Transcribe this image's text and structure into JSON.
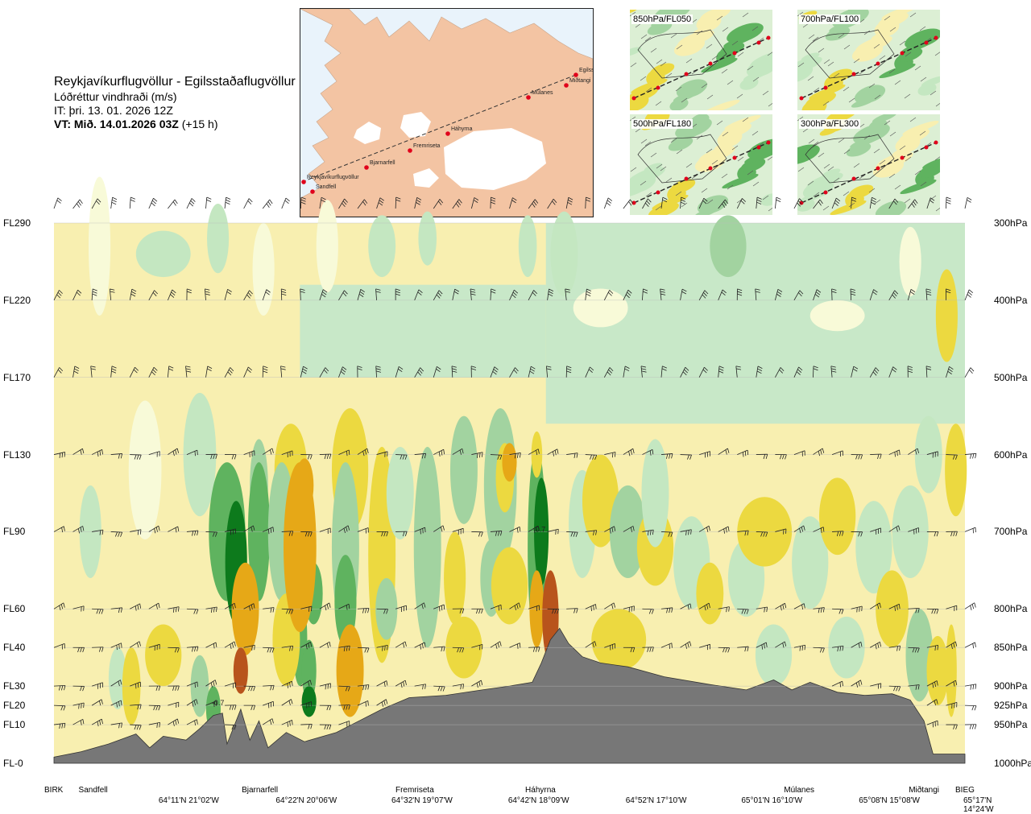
{
  "header": {
    "route": "Reykjavíkurflugvöllur - Egilsstaðaflugvöllur",
    "variable": "Lóðréttur vindhraði (m/s)",
    "issue_time": "IT: þri. 13. 01. 2026 12Z",
    "valid_time": "VT: Mið. 14.01.2026 03Z",
    "lead_time": "(+15 h)"
  },
  "map": {
    "stations": [
      "Reykjavíkurflugvöllur",
      "Sandfell",
      "Bjarnarfell",
      "Fremriseta",
      "Háhyrna",
      "Múlanes",
      "Egilsstaðir",
      "Miðtangi"
    ],
    "colors": {
      "sea": "#e9f3fb",
      "land": "#f3c4a3",
      "ice": "#ffffff",
      "route": "#333333",
      "marker": "#e0001b"
    }
  },
  "panels": [
    {
      "label": "850hPa/FL050"
    },
    {
      "label": "700hPa/FL100"
    },
    {
      "label": "500hPa/FL180"
    },
    {
      "label": "300hPa/FL300"
    }
  ],
  "chart_data": {
    "type": "heatmap",
    "title": "Lóðréttur vindhraði (m/s)",
    "left_axis_labels": [
      {
        "level": "FL290",
        "hpa": 300
      },
      {
        "level": "FL220",
        "hpa": 400
      },
      {
        "level": "FL170",
        "hpa": 500
      },
      {
        "level": "FL130",
        "hpa": 600
      },
      {
        "level": "FL90",
        "hpa": 700
      },
      {
        "level": "FL60",
        "hpa": 800
      },
      {
        "level": "FL40",
        "hpa": 850
      },
      {
        "level": "FL30",
        "hpa": 900
      },
      {
        "level": "FL20",
        "hpa": 925
      },
      {
        "level": "FL10",
        "hpa": 950
      },
      {
        "level": "FL-0",
        "hpa": 1000
      }
    ],
    "right_axis_labels": [
      "300hPa",
      "400hPa",
      "500hPa",
      "600hPa",
      "700hPa",
      "800hPa",
      "850hPa",
      "900hPa",
      "925hPa",
      "950hPa",
      "1000hPa"
    ],
    "pressure_range_hpa": [
      300,
      1000
    ],
    "route_fraction_range": [
      0,
      1
    ],
    "locations": [
      {
        "name": "BIRK",
        "pos": 0.0
      },
      {
        "name": "Sandfell",
        "pos": 0.043
      },
      {
        "name": "Bjarnarfell",
        "pos": 0.226
      },
      {
        "name": "Fremriseta",
        "pos": 0.396
      },
      {
        "name": "Háhyrna",
        "pos": 0.534
      },
      {
        "name": "Múlanes",
        "pos": 0.818
      },
      {
        "name": "Miðtangi",
        "pos": 0.955
      },
      {
        "name": "BIEG",
        "pos": 1.0
      }
    ],
    "coordinates": [
      {
        "text": "64°11'N 21°02'W",
        "pos": 0.148
      },
      {
        "text": "64°22'N 20°06'W",
        "pos": 0.277
      },
      {
        "text": "64°32'N 19°07'W",
        "pos": 0.404
      },
      {
        "text": "64°42'N 18°09'W",
        "pos": 0.532
      },
      {
        "text": "64°52'N 17°10'W",
        "pos": 0.661
      },
      {
        "text": "65°01'N 16°10'W",
        "pos": 0.788
      },
      {
        "text": "65°08'N 15°08'W",
        "pos": 0.917
      },
      {
        "text": "65°17'N 14°24'W",
        "pos": 1.0
      }
    ],
    "annotations": [
      {
        "text": "-0.7",
        "pos": 0.18,
        "hpa": 925
      },
      {
        "text": "0.7",
        "pos": 0.534,
        "hpa": 700
      }
    ],
    "color_scale": [
      {
        "range": [
          -1.0,
          -0.5
        ],
        "color": "#0d7a1c"
      },
      {
        "range": [
          -0.5,
          -0.2
        ],
        "color": "#5fb35f"
      },
      {
        "range": [
          -0.2,
          -0.1
        ],
        "color": "#a2d3a0"
      },
      {
        "range": [
          -0.1,
          -0.05
        ],
        "color": "#c4e7c1"
      },
      {
        "range": [
          -0.05,
          0.05
        ],
        "color": "#f8fad8"
      },
      {
        "range": [
          0.05,
          0.1
        ],
        "color": "#f8efb0"
      },
      {
        "range": [
          0.1,
          0.2
        ],
        "color": "#ecd940"
      },
      {
        "range": [
          0.2,
          0.5
        ],
        "color": "#e6a817"
      },
      {
        "range": [
          0.5,
          1.0
        ],
        "color": "#b8541c"
      }
    ],
    "background_color": "#f8efb0",
    "upper_background_color": "#c8e8c8",
    "terrain_color": "#777777",
    "terrain_profile": [
      {
        "x": 0.0,
        "hpa": 992
      },
      {
        "x": 0.03,
        "hpa": 985
      },
      {
        "x": 0.06,
        "hpa": 975
      },
      {
        "x": 0.09,
        "hpa": 962
      },
      {
        "x": 0.105,
        "hpa": 980
      },
      {
        "x": 0.12,
        "hpa": 965
      },
      {
        "x": 0.145,
        "hpa": 970
      },
      {
        "x": 0.16,
        "hpa": 955
      },
      {
        "x": 0.175,
        "hpa": 938
      },
      {
        "x": 0.185,
        "hpa": 935
      },
      {
        "x": 0.19,
        "hpa": 975
      },
      {
        "x": 0.205,
        "hpa": 930
      },
      {
        "x": 0.215,
        "hpa": 970
      },
      {
        "x": 0.225,
        "hpa": 945
      },
      {
        "x": 0.235,
        "hpa": 980
      },
      {
        "x": 0.255,
        "hpa": 960
      },
      {
        "x": 0.275,
        "hpa": 972
      },
      {
        "x": 0.31,
        "hpa": 960
      },
      {
        "x": 0.335,
        "hpa": 945
      },
      {
        "x": 0.36,
        "hpa": 930
      },
      {
        "x": 0.39,
        "hpa": 915
      },
      {
        "x": 0.43,
        "hpa": 912
      },
      {
        "x": 0.47,
        "hpa": 905
      },
      {
        "x": 0.5,
        "hpa": 900
      },
      {
        "x": 0.525,
        "hpa": 895
      },
      {
        "x": 0.535,
        "hpa": 870
      },
      {
        "x": 0.545,
        "hpa": 840
      },
      {
        "x": 0.555,
        "hpa": 825
      },
      {
        "x": 0.565,
        "hpa": 845
      },
      {
        "x": 0.58,
        "hpa": 862
      },
      {
        "x": 0.6,
        "hpa": 870
      },
      {
        "x": 0.63,
        "hpa": 875
      },
      {
        "x": 0.67,
        "hpa": 888
      },
      {
        "x": 0.72,
        "hpa": 898
      },
      {
        "x": 0.76,
        "hpa": 905
      },
      {
        "x": 0.79,
        "hpa": 892
      },
      {
        "x": 0.81,
        "hpa": 905
      },
      {
        "x": 0.83,
        "hpa": 895
      },
      {
        "x": 0.86,
        "hpa": 908
      },
      {
        "x": 0.89,
        "hpa": 912
      },
      {
        "x": 0.92,
        "hpa": 910
      },
      {
        "x": 0.94,
        "hpa": 918
      },
      {
        "x": 0.955,
        "hpa": 945
      },
      {
        "x": 0.965,
        "hpa": 988
      },
      {
        "x": 1.0,
        "hpa": 988
      }
    ],
    "wind_barb_levels_hpa": [
      300,
      400,
      500,
      600,
      700,
      800,
      850,
      900,
      925,
      950
    ],
    "grid": true
  }
}
